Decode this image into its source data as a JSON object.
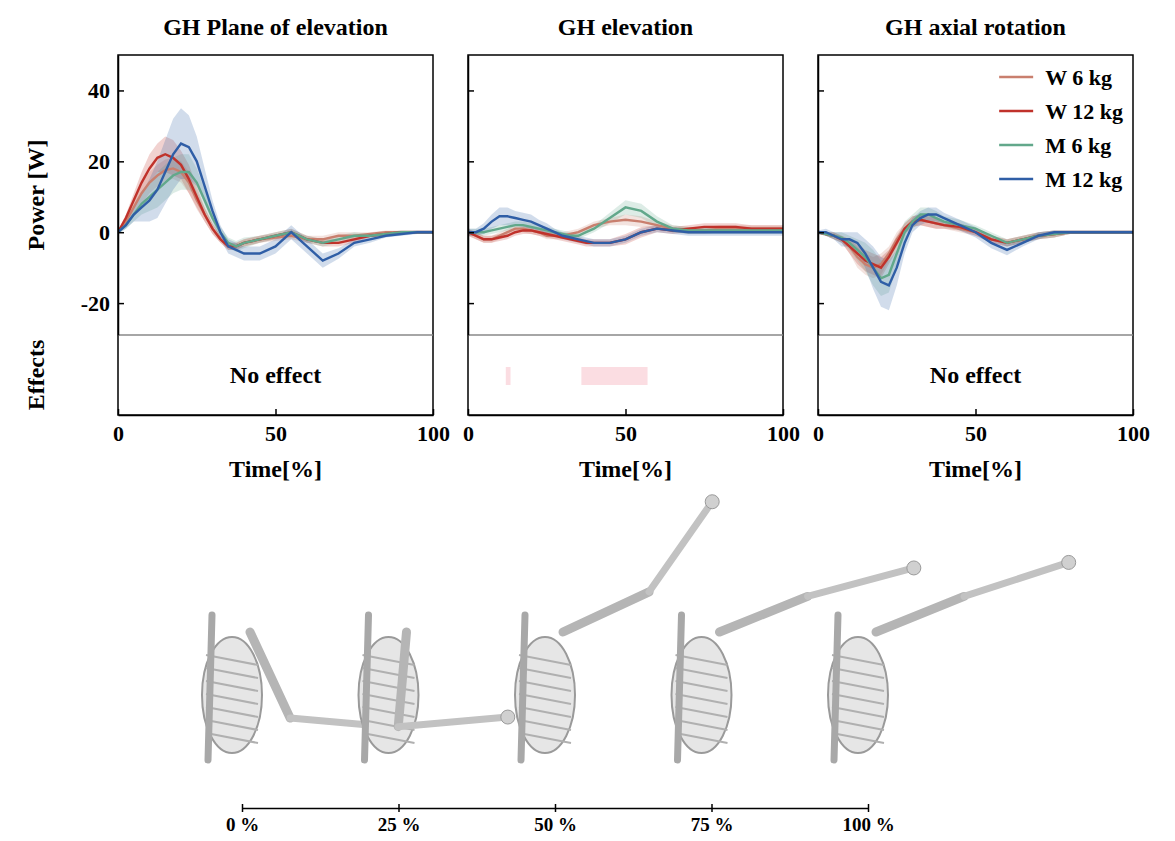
{
  "chart_data": [
    {
      "type": "line",
      "title": "GH Plane of elevation",
      "xlabel": "Time[%]",
      "ylabel": "Power [W]",
      "effects_label": "Effects",
      "effects_text": "No effect",
      "x": [
        0,
        2.5,
        5,
        7.5,
        10,
        12.5,
        15,
        17.5,
        20,
        22.5,
        25,
        27.5,
        30,
        32.5,
        35,
        37.5,
        40,
        45,
        50,
        55,
        60,
        65,
        70,
        75,
        80,
        85,
        90,
        95,
        100
      ],
      "xlim": [
        0,
        100
      ],
      "xticks": [
        0,
        50,
        100
      ],
      "ylim": [
        -29,
        50
      ],
      "yticks": [
        -20,
        0,
        20,
        40
      ],
      "series": [
        {
          "color": "#c97f6e",
          "values": [
            0,
            3,
            7,
            11,
            14,
            16,
            17.5,
            18,
            17,
            14,
            9,
            5,
            1,
            -2,
            -4,
            -4,
            -3,
            -2,
            -1.5,
            -1,
            -2,
            -2,
            -1,
            -1,
            -0.5,
            0,
            0,
            0,
            0
          ],
          "sd": [
            0.5,
            1,
            2,
            3,
            3,
            3,
            3,
            3,
            3,
            3,
            2.5,
            2,
            1.5,
            1,
            1,
            1,
            1,
            1,
            1,
            1,
            1,
            1,
            1,
            1,
            0.5,
            0.5,
            0.5,
            0.5,
            0.5
          ]
        },
        {
          "color": "#c0322b",
          "values": [
            0,
            4,
            9,
            14,
            18,
            21,
            22,
            21,
            19,
            15,
            10,
            5,
            1,
            -2,
            -4,
            -4,
            -3,
            -2,
            -1,
            0,
            -2,
            -3,
            -3,
            -2,
            -1,
            -0.5,
            0,
            0,
            0
          ],
          "sd": [
            0.5,
            1,
            2,
            3,
            4,
            4,
            5,
            5,
            4,
            4,
            3,
            2,
            1.5,
            1,
            1,
            1,
            1,
            1,
            1,
            1,
            1,
            1,
            1,
            1,
            0.5,
            0.5,
            0.5,
            0.5,
            0.5
          ]
        },
        {
          "color": "#62a88b",
          "values": [
            0,
            2,
            5,
            8,
            10,
            12,
            14,
            16,
            17,
            17,
            14,
            9,
            4,
            0,
            -3,
            -4,
            -3,
            -2,
            -1,
            0,
            -2,
            -3,
            -2,
            -1,
            -1,
            -0.5,
            0,
            0,
            0
          ],
          "sd": [
            0.5,
            1,
            2,
            3,
            4,
            5,
            5,
            5,
            5,
            5,
            4,
            3,
            2,
            1.5,
            1.5,
            1.5,
            1.5,
            1,
            1,
            1,
            1,
            1,
            1,
            1,
            0.5,
            0.5,
            0.5,
            0.5,
            0.5
          ]
        },
        {
          "color": "#2f5ea6",
          "values": [
            0,
            2,
            5,
            7,
            9,
            12,
            17,
            22,
            25,
            24,
            20,
            13,
            6,
            0,
            -4,
            -5,
            -6,
            -6,
            -4,
            0,
            -4,
            -8,
            -6,
            -3,
            -2,
            -1,
            -0.5,
            0,
            0
          ],
          "sd": [
            0.5,
            1,
            2,
            4,
            6,
            8,
            9,
            10,
            10,
            9,
            7,
            5,
            3,
            2,
            2,
            2,
            2,
            2,
            2,
            2,
            2,
            2,
            1.5,
            1,
            1,
            0.5,
            0.5,
            0.5,
            0.5
          ]
        }
      ]
    },
    {
      "type": "line",
      "title": "GH elevation",
      "xlabel": "Time[%]",
      "tick_labels": "x",
      "effect_intervals": [
        [
          12,
          13.5
        ],
        [
          36,
          57
        ]
      ],
      "x": [
        0,
        2.5,
        5,
        7.5,
        10,
        12.5,
        15,
        17.5,
        20,
        22.5,
        25,
        27.5,
        30,
        32.5,
        35,
        37.5,
        40,
        45,
        50,
        55,
        60,
        65,
        70,
        75,
        80,
        85,
        90,
        95,
        100
      ],
      "xlim": [
        0,
        100
      ],
      "xticks": [
        0,
        50,
        100
      ],
      "ylim": [
        -29,
        50
      ],
      "yticks": [
        -20,
        0,
        20,
        40
      ],
      "series": [
        {
          "color": "#c97f6e",
          "values": [
            0,
            -1,
            -2,
            -2,
            -1,
            0,
            1,
            1,
            0.5,
            0,
            -1,
            -1,
            -1,
            -0.5,
            0,
            1,
            2,
            3,
            3.5,
            3,
            2,
            1,
            0.5,
            0.5,
            1,
            1,
            1,
            1,
            1
          ],
          "sd": [
            1,
            1,
            1,
            1,
            1,
            1,
            1,
            1,
            1,
            1,
            1,
            1,
            1,
            1,
            1,
            1,
            1,
            1,
            1.5,
            1.5,
            1,
            1,
            1,
            1,
            1,
            1,
            1,
            1,
            1
          ]
        },
        {
          "color": "#c0322b",
          "values": [
            0,
            -1,
            -2,
            -2,
            -1.5,
            -1,
            0,
            0.5,
            0.5,
            0,
            -0.5,
            -1,
            -1.5,
            -2,
            -2.5,
            -3,
            -3,
            -3,
            -2,
            0,
            1,
            0.5,
            1,
            1.5,
            1.5,
            1.5,
            1,
            1,
            1
          ],
          "sd": [
            1,
            1,
            1,
            1,
            1,
            1,
            1,
            1,
            1,
            1,
            1,
            1,
            1,
            1,
            1,
            1,
            1,
            1,
            1.5,
            1.5,
            1,
            1,
            1,
            1,
            1,
            1,
            1,
            1,
            1
          ]
        },
        {
          "color": "#62a88b",
          "values": [
            0,
            0,
            0,
            0.5,
            1,
            1.5,
            2,
            2,
            1.5,
            1,
            0.5,
            0,
            -0.5,
            -1,
            -1,
            0,
            1,
            4,
            7,
            6,
            3,
            1,
            0.5,
            0.5,
            0.5,
            0.5,
            0.5,
            0.5,
            0.5
          ],
          "sd": [
            1,
            1,
            1,
            1,
            1,
            1,
            1,
            1,
            1,
            1,
            1,
            1,
            1,
            1,
            1,
            1,
            1,
            1.5,
            2,
            2,
            1.5,
            1,
            1,
            1,
            1,
            1,
            1,
            1,
            1
          ]
        },
        {
          "color": "#2f5ea6",
          "values": [
            0,
            0,
            1,
            3,
            4.5,
            4.5,
            4,
            3.5,
            3,
            2,
            1,
            0,
            -1,
            -1.5,
            -2,
            -2.5,
            -3,
            -3,
            -2,
            0,
            1,
            0.5,
            0,
            0,
            0,
            0,
            0,
            0,
            0
          ],
          "sd": [
            1,
            1,
            1.5,
            2,
            2.5,
            2.5,
            2,
            2,
            2,
            1.5,
            1.5,
            1,
            1,
            1,
            1,
            1,
            1,
            1,
            1,
            1,
            1,
            1,
            1,
            1,
            1,
            1,
            1,
            1,
            1
          ]
        }
      ]
    },
    {
      "type": "line",
      "title": "GH axial rotation",
      "xlabel": "Time[%]",
      "tick_labels": "x",
      "effects_text": "No effect",
      "legend": "upper right",
      "x": [
        0,
        2.5,
        5,
        7.5,
        10,
        12.5,
        15,
        17.5,
        20,
        22.5,
        25,
        27.5,
        30,
        32.5,
        35,
        37.5,
        40,
        45,
        50,
        55,
        60,
        65,
        70,
        75,
        80,
        85,
        90,
        95,
        100
      ],
      "xlim": [
        0,
        100
      ],
      "xticks": [
        0,
        50,
        100
      ],
      "ylim": [
        -29,
        50
      ],
      "yticks": [
        -20,
        0,
        20,
        40
      ],
      "series": [
        {
          "name": "W 6 kg",
          "color": "#c97f6e",
          "values": [
            0,
            -0.5,
            -1,
            -2,
            -4,
            -7,
            -9,
            -10,
            -9,
            -6,
            -2,
            1,
            3,
            3.5,
            3,
            2.5,
            2,
            1,
            0,
            -2,
            -3,
            -2,
            -1,
            -0.5,
            0,
            0,
            0,
            0,
            0
          ],
          "sd": [
            0.5,
            0.5,
            1,
            1,
            2,
            3,
            3,
            3,
            3,
            2,
            2,
            1.5,
            1.5,
            1.5,
            1.5,
            1.5,
            1,
            1,
            1,
            1,
            1,
            1,
            1,
            1,
            0.5,
            0.5,
            0.5,
            0.5,
            0.5
          ]
        },
        {
          "name": "W 12 kg",
          "color": "#c0322b",
          "values": [
            0,
            -0.5,
            -1,
            -2,
            -4,
            -6,
            -8,
            -9,
            -10,
            -7,
            -3,
            1,
            3,
            3.5,
            3,
            2.5,
            2,
            1.5,
            0,
            -2,
            -3,
            -2,
            -1,
            -0.5,
            0,
            0,
            0,
            0,
            0
          ],
          "sd": [
            0.5,
            0.5,
            1,
            1,
            2,
            3,
            3,
            3,
            3,
            2,
            2,
            1.5,
            1.5,
            1.5,
            1.5,
            1.5,
            1,
            1,
            1,
            1,
            1,
            1,
            1,
            1,
            0.5,
            0.5,
            0.5,
            0.5,
            0.5
          ]
        },
        {
          "name": "M 6 kg",
          "color": "#62a88b",
          "values": [
            0,
            -0.5,
            -1,
            -1.5,
            -3,
            -5,
            -7,
            -10,
            -13,
            -12,
            -6,
            0,
            3,
            5,
            5,
            4,
            3,
            2,
            1,
            -1,
            -3,
            -2,
            -1,
            -0.5,
            0,
            0,
            0,
            0,
            0
          ],
          "sd": [
            0.5,
            0.5,
            1,
            1.5,
            2,
            3,
            4,
            5,
            5,
            5,
            4,
            3,
            2,
            2,
            2,
            2,
            1.5,
            1.5,
            1,
            1,
            1,
            1,
            1,
            1,
            0.5,
            0.5,
            0.5,
            0.5,
            0.5
          ]
        },
        {
          "name": "M 12 kg",
          "color": "#2f5ea6",
          "values": [
            0,
            0,
            -1,
            -2,
            -2,
            -3,
            -6,
            -10,
            -14,
            -15,
            -10,
            -3,
            2,
            4,
            5,
            5,
            4,
            2,
            0,
            -3,
            -5,
            -3,
            -1,
            0,
            0,
            0,
            0,
            0,
            0
          ],
          "sd": [
            0.5,
            1,
            1,
            2,
            2,
            3,
            4,
            6,
            7,
            7,
            5,
            3,
            2,
            2,
            2,
            2,
            1.5,
            1.5,
            1.5,
            1.5,
            1.5,
            1,
            1,
            0.5,
            0.5,
            0.5,
            0.5,
            0.5,
            0.5
          ]
        }
      ]
    },
    {
      "type": "timeline",
      "xlim": [
        0,
        100
      ],
      "xticks": [
        {
          "value": 0,
          "label": "0 %"
        },
        {
          "value": 25,
          "label": "25 %"
        },
        {
          "value": 50,
          "label": "50 %"
        },
        {
          "value": 75,
          "label": "75 %"
        },
        {
          "value": 100,
          "label": "100 %"
        }
      ]
    }
  ]
}
